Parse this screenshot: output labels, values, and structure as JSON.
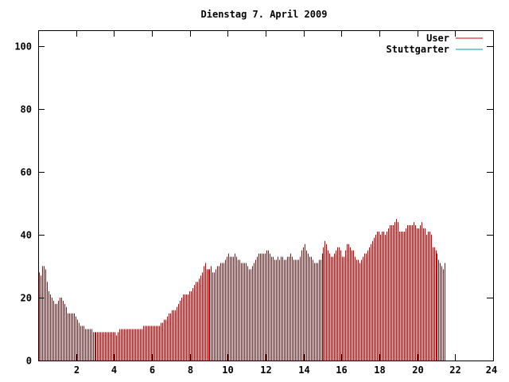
{
  "chart_data": {
    "type": "bar",
    "title": "Dienstag 7. April 2009",
    "xlabel": "",
    "ylabel": "",
    "xlim": [
      0,
      24
    ],
    "ylim": [
      0,
      105
    ],
    "x_ticks": [
      2,
      4,
      6,
      8,
      10,
      12,
      14,
      16,
      18,
      20,
      22,
      24
    ],
    "x_tick_labels": [
      "2",
      "4",
      "6",
      "8",
      "10",
      "12",
      "14",
      "16",
      "18",
      "20",
      "22",
      "24"
    ],
    "y_ticks": [
      0,
      20,
      40,
      60,
      80,
      100
    ],
    "y_tick_labels": [
      "0",
      "20",
      "40",
      "60",
      "80",
      "100"
    ],
    "grid": false,
    "legend_position": "top-right",
    "interval_minutes": 5,
    "series": [
      {
        "name": "User",
        "color": "#cc0000",
        "values": [
          28,
          27,
          30,
          30,
          29,
          25,
          22,
          21,
          20,
          19,
          18,
          18,
          19,
          20,
          20,
          19,
          18,
          17,
          15,
          15,
          15,
          15,
          15,
          14,
          13,
          12,
          11,
          11,
          11,
          10,
          10,
          10,
          10,
          10,
          9,
          9,
          9,
          9,
          9,
          9,
          9,
          9,
          9,
          9,
          9,
          9,
          9,
          9,
          9,
          8,
          9,
          10,
          10,
          10,
          10,
          10,
          10,
          10,
          10,
          10,
          10,
          10,
          10,
          10,
          10,
          10,
          11,
          11,
          11,
          11,
          11,
          11,
          11,
          11,
          11,
          11,
          11,
          12,
          12,
          13,
          13,
          14,
          15,
          15,
          16,
          16,
          16,
          17,
          18,
          19,
          20,
          21,
          21,
          21,
          21,
          22,
          22,
          23,
          24,
          25,
          25,
          26,
          27,
          28,
          30,
          31,
          29,
          29,
          29,
          30,
          28,
          28,
          29,
          30,
          30,
          31,
          31,
          31,
          32,
          33,
          34,
          33,
          33,
          33,
          34,
          33,
          32,
          32,
          31,
          31,
          31,
          31,
          30,
          29,
          29,
          30,
          31,
          32,
          33,
          34,
          34,
          34,
          34,
          34,
          35,
          35,
          34,
          33,
          33,
          32,
          32,
          33,
          32,
          33,
          33,
          32,
          32,
          33,
          33,
          34,
          33,
          32,
          32,
          32,
          32,
          33,
          35,
          36,
          37,
          35,
          34,
          33,
          33,
          32,
          31,
          31,
          31,
          32,
          32,
          34,
          36,
          38,
          37,
          35,
          34,
          33,
          33,
          34,
          35,
          36,
          36,
          35,
          33,
          33,
          35,
          37,
          37,
          36,
          35,
          35,
          33,
          32,
          32,
          31,
          32,
          33,
          34,
          34,
          35,
          36,
          37,
          38,
          39,
          40,
          41,
          41,
          40,
          41,
          41,
          40,
          41,
          42,
          43,
          43,
          43,
          44,
          45,
          44,
          41,
          41,
          41,
          41,
          42,
          43,
          43,
          43,
          43,
          44,
          43,
          42,
          42,
          43,
          44,
          42,
          42,
          40,
          41,
          41,
          40,
          36,
          36,
          35,
          34,
          32,
          31,
          30,
          29,
          31
        ]
      },
      {
        "name": "Stuttgarter",
        "color": "#009999",
        "values": []
      }
    ]
  }
}
